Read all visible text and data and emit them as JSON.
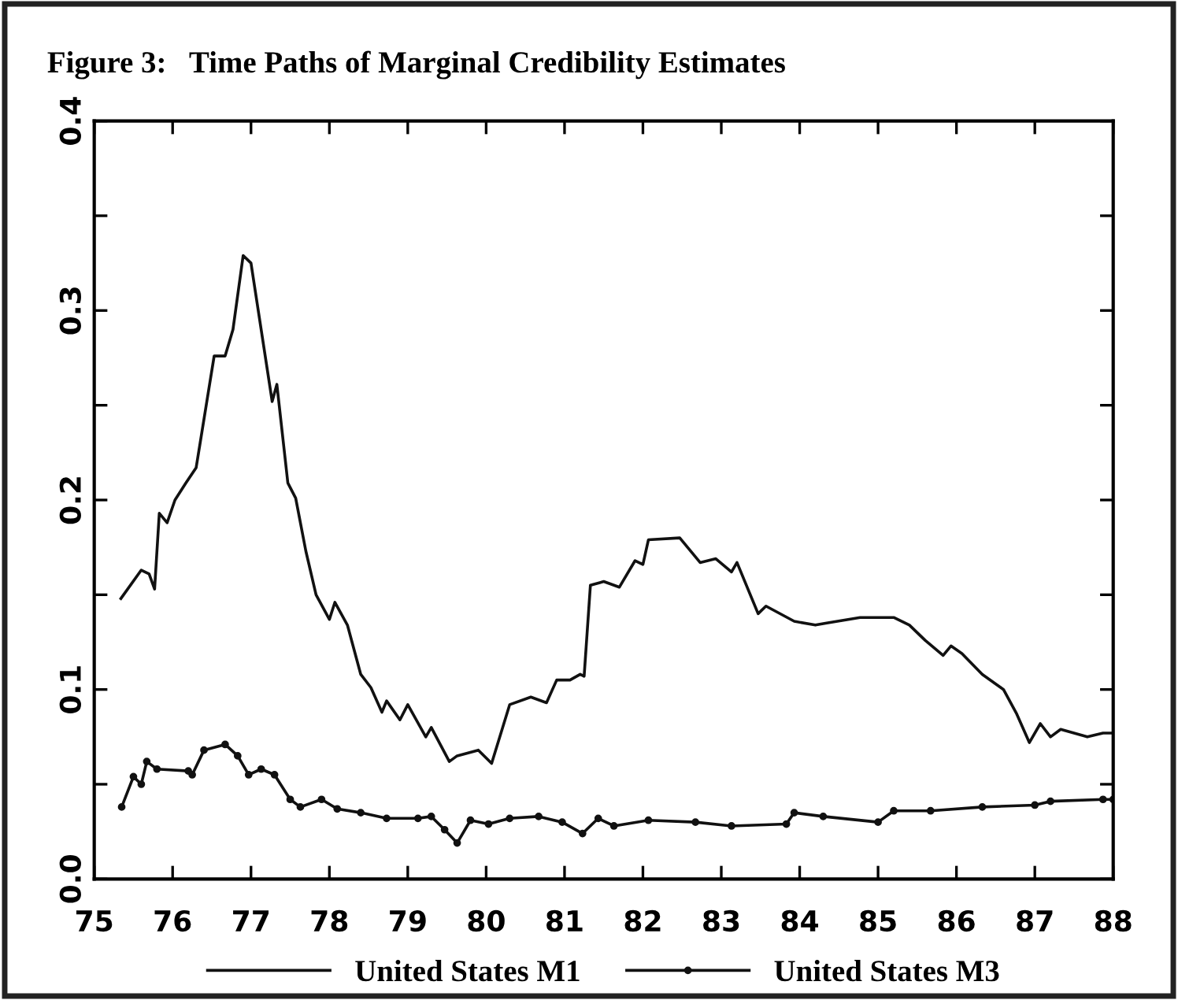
{
  "chart_data": {
    "type": "line",
    "title": "Figure 3:   Time Paths of Marginal Credibility Estimates",
    "xlim": [
      75,
      88
    ],
    "xticks": [
      75,
      76,
      77,
      78,
      79,
      80,
      81,
      82,
      83,
      84,
      85,
      86,
      87,
      88
    ],
    "ylim": [
      0.0,
      0.4
    ],
    "yticks": [
      {
        "value": 0.0,
        "label": "0.0"
      },
      {
        "value": 0.05,
        "label": null
      },
      {
        "value": 0.1,
        "label": "0.1"
      },
      {
        "value": 0.15,
        "label": null
      },
      {
        "value": 0.2,
        "label": "0.2"
      },
      {
        "value": 0.25,
        "label": null
      },
      {
        "value": 0.3,
        "label": "0.3"
      },
      {
        "value": 0.35,
        "label": null
      },
      {
        "value": 0.4,
        "label": "0.4"
      }
    ],
    "grid": false,
    "legend": "bottom",
    "line_style": "solid",
    "series": [
      {
        "name": "United States M1",
        "color": "#111111",
        "marker": "none",
        "x": [
          75.34,
          75.6,
          75.7,
          75.77,
          75.83,
          75.93,
          76.03,
          76.17,
          76.3,
          76.53,
          76.67,
          76.77,
          76.9,
          77.0,
          77.27,
          77.33,
          77.47,
          77.57,
          77.7,
          77.83,
          78.0,
          78.07,
          78.23,
          78.4,
          78.53,
          78.67,
          78.73,
          78.9,
          79.0,
          79.23,
          79.3,
          79.53,
          79.63,
          79.9,
          80.07,
          80.3,
          80.57,
          80.77,
          80.9,
          81.07,
          81.2,
          81.25,
          81.33,
          81.5,
          81.7,
          81.9,
          82.0,
          82.07,
          82.47,
          82.73,
          82.93,
          83.13,
          83.2,
          83.47,
          83.57,
          83.93,
          84.2,
          84.33,
          84.77,
          85.2,
          85.4,
          85.6,
          85.83,
          85.93,
          86.07,
          86.33,
          86.6,
          86.77,
          86.93,
          87.07,
          87.2,
          87.33,
          87.67,
          87.87,
          88.0
        ],
        "values": [
          0.148,
          0.163,
          0.161,
          0.153,
          0.193,
          0.188,
          0.2,
          0.209,
          0.217,
          0.276,
          0.276,
          0.29,
          0.329,
          0.325,
          0.252,
          0.261,
          0.209,
          0.201,
          0.173,
          0.15,
          0.137,
          0.146,
          0.134,
          0.108,
          0.101,
          0.088,
          0.094,
          0.084,
          0.092,
          0.075,
          0.08,
          0.062,
          0.065,
          0.068,
          0.061,
          0.092,
          0.096,
          0.093,
          0.105,
          0.105,
          0.108,
          0.107,
          0.155,
          0.157,
          0.154,
          0.168,
          0.166,
          0.179,
          0.18,
          0.167,
          0.169,
          0.162,
          0.167,
          0.14,
          0.144,
          0.136,
          0.134,
          0.135,
          0.138,
          0.138,
          0.134,
          0.126,
          0.118,
          0.123,
          0.119,
          0.108,
          0.1,
          0.087,
          0.072,
          0.082,
          0.075,
          0.079,
          0.075,
          0.077,
          0.077
        ]
      },
      {
        "name": "United States M3",
        "color": "#111111",
        "marker": "circle",
        "x": [
          75.35,
          75.5,
          75.6,
          75.67,
          75.8,
          76.2,
          76.25,
          76.4,
          76.67,
          76.83,
          76.97,
          77.13,
          77.3,
          77.5,
          77.63,
          77.9,
          78.1,
          78.4,
          78.73,
          79.13,
          79.3,
          79.47,
          79.63,
          79.8,
          80.03,
          80.3,
          80.67,
          80.97,
          81.23,
          81.43,
          81.63,
          82.07,
          82.67,
          83.13,
          83.83,
          83.93,
          84.3,
          85.0,
          85.2,
          85.67,
          86.33,
          87.0,
          87.2,
          87.87,
          88.0
        ],
        "values": [
          0.038,
          0.054,
          0.05,
          0.062,
          0.058,
          0.057,
          0.055,
          0.068,
          0.071,
          0.065,
          0.055,
          0.058,
          0.055,
          0.042,
          0.038,
          0.042,
          0.037,
          0.035,
          0.032,
          0.032,
          0.033,
          0.026,
          0.019,
          0.031,
          0.029,
          0.032,
          0.033,
          0.03,
          0.024,
          0.032,
          0.028,
          0.031,
          0.03,
          0.028,
          0.029,
          0.035,
          0.033,
          0.03,
          0.036,
          0.036,
          0.038,
          0.039,
          0.041,
          0.042,
          0.042
        ]
      }
    ]
  }
}
